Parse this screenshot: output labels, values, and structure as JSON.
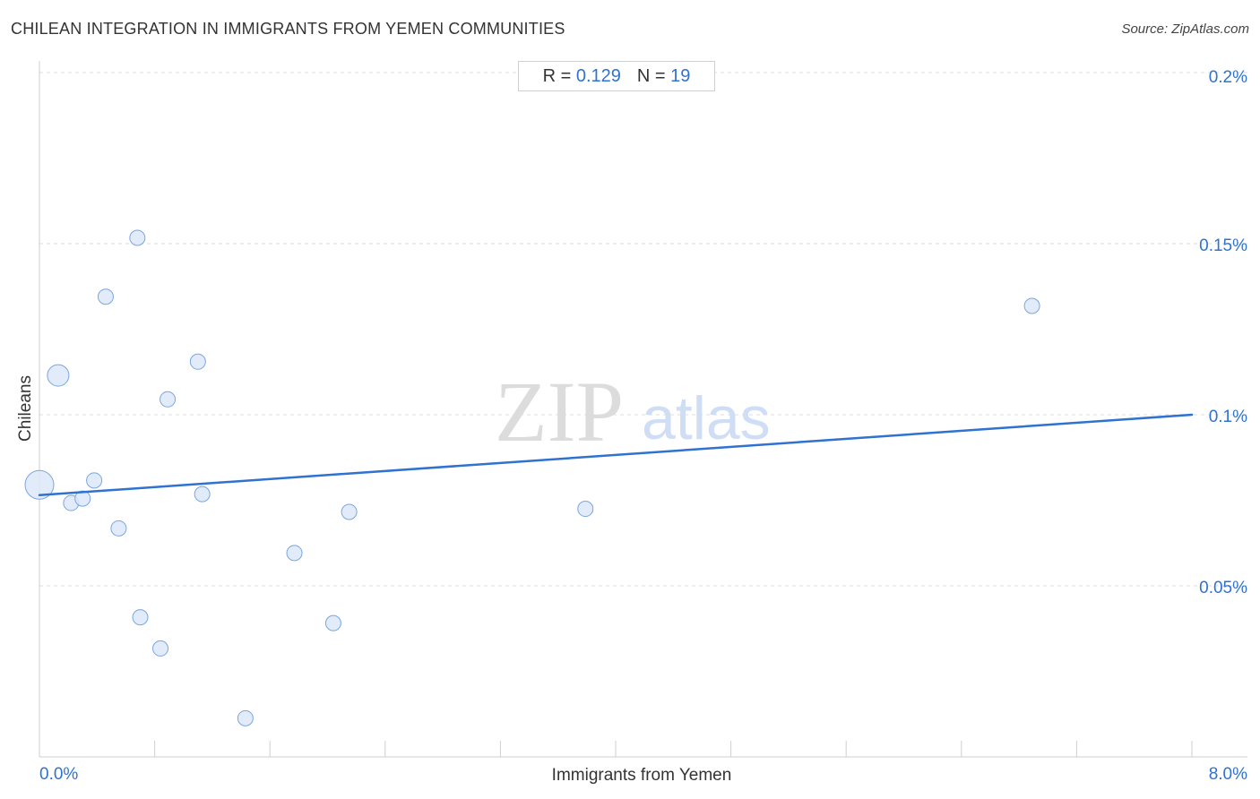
{
  "header": {
    "title": "CHILEAN INTEGRATION IN IMMIGRANTS FROM YEMEN COMMUNITIES",
    "source": "Source: ZipAtlas.com"
  },
  "stats": {
    "r_label": "R =",
    "r_value": "0.129",
    "n_label": "N =",
    "n_value": "19"
  },
  "watermark": {
    "zip": "ZIP",
    "atlas": "atlas"
  },
  "colors": {
    "accent": "#2f72d0",
    "point_fill": "#dce8f8",
    "point_stroke": "#7aa6e0",
    "grid": "#dddddd"
  },
  "chart_data": {
    "type": "scatter",
    "title": "CHILEAN INTEGRATION IN IMMIGRANTS FROM YEMEN COMMUNITIES",
    "xlabel": "Immigrants from Yemen",
    "ylabel": "Chileans",
    "xlim": [
      0,
      8
    ],
    "ylim": [
      0,
      0.2
    ],
    "x_ticks": [
      0,
      8
    ],
    "x_tick_labels": [
      "0.0%",
      "8.0%"
    ],
    "y_ticks": [
      0.05,
      0.1,
      0.15,
      0.2
    ],
    "y_tick_labels": [
      "0.05%",
      "0.1%",
      "0.15%",
      "0.2%"
    ],
    "grid": true,
    "points": [
      {
        "x": 0.0,
        "y": 0.0795,
        "size": "large"
      },
      {
        "x": 0.13,
        "y": 0.1115,
        "size": "medium"
      },
      {
        "x": 0.22,
        "y": 0.0742,
        "size": "small"
      },
      {
        "x": 0.3,
        "y": 0.0755,
        "size": "small"
      },
      {
        "x": 0.38,
        "y": 0.0808,
        "size": "small"
      },
      {
        "x": 0.46,
        "y": 0.1345,
        "size": "small"
      },
      {
        "x": 0.55,
        "y": 0.0668,
        "size": "small"
      },
      {
        "x": 0.68,
        "y": 0.1517,
        "size": "small"
      },
      {
        "x": 0.7,
        "y": 0.0408,
        "size": "small"
      },
      {
        "x": 0.84,
        "y": 0.0317,
        "size": "small"
      },
      {
        "x": 0.89,
        "y": 0.1045,
        "size": "small"
      },
      {
        "x": 1.1,
        "y": 0.1155,
        "size": "small"
      },
      {
        "x": 1.13,
        "y": 0.0768,
        "size": "small"
      },
      {
        "x": 1.43,
        "y": 0.0113,
        "size": "small"
      },
      {
        "x": 1.77,
        "y": 0.0596,
        "size": "small"
      },
      {
        "x": 2.04,
        "y": 0.0391,
        "size": "small"
      },
      {
        "x": 2.15,
        "y": 0.0716,
        "size": "small"
      },
      {
        "x": 3.79,
        "y": 0.0725,
        "size": "small"
      },
      {
        "x": 6.89,
        "y": 0.1318,
        "size": "small"
      }
    ],
    "trendline": {
      "x": [
        0,
        8
      ],
      "y": [
        0.0765,
        0.1
      ]
    }
  }
}
